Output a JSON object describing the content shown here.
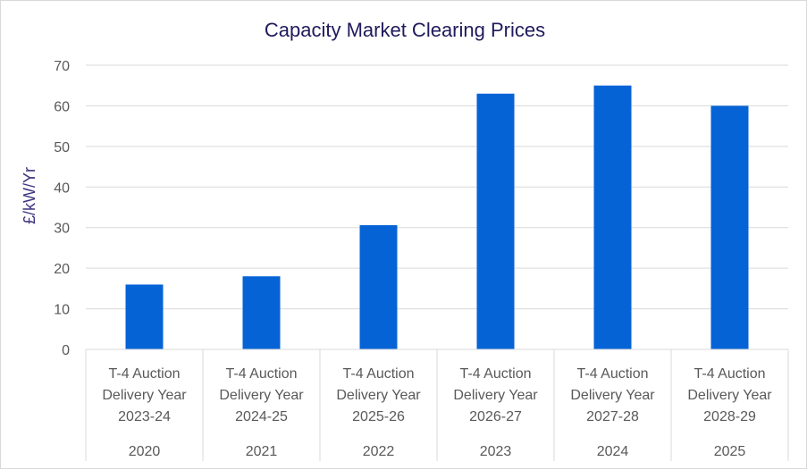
{
  "chart_data": {
    "type": "bar",
    "title": "Capacity Market Clearing Prices",
    "xlabel": "",
    "ylabel": "£/kW/Yr",
    "ylim": [
      0,
      70
    ],
    "yticks": [
      0,
      10,
      20,
      30,
      40,
      50,
      60,
      70
    ],
    "grid": true,
    "legend": "none",
    "bar_color": "#0563d6",
    "categories": [
      {
        "lines": [
          "T-4 Auction",
          "Delivery Year",
          "2023-24"
        ],
        "group": "2020"
      },
      {
        "lines": [
          "T-4 Auction",
          "Delivery Year",
          "2024-25"
        ],
        "group": "2021"
      },
      {
        "lines": [
          "T-4 Auction",
          "Delivery Year",
          "2025-26"
        ],
        "group": "2022"
      },
      {
        "lines": [
          "T-4 Auction",
          "Delivery Year",
          "2026-27"
        ],
        "group": "2023"
      },
      {
        "lines": [
          "T-4 Auction",
          "Delivery Year",
          "2027-28"
        ],
        "group": "2024"
      },
      {
        "lines": [
          "T-4 Auction",
          "Delivery Year",
          "2028-29"
        ],
        "group": "2025"
      }
    ],
    "values": [
      15.97,
      18.0,
      30.59,
      63.0,
      65.0,
      60.0
    ]
  }
}
